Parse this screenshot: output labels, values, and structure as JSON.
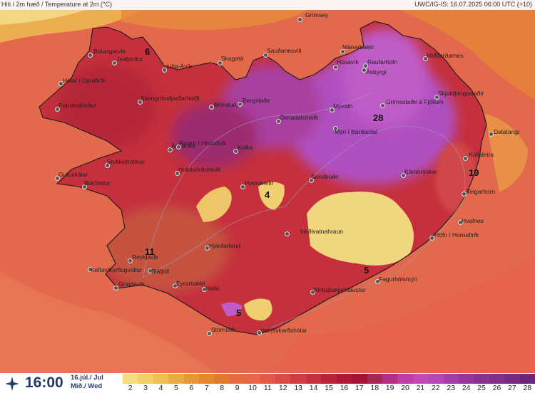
{
  "header": {
    "left": "Hiti í 2m hæð / Temperature at 2m (°C)",
    "right": "UWC/IG-IS: 16.07.2025 06:00 UTC (+10)"
  },
  "footer": {
    "logo_icon": "weather-star-icon",
    "time": "16:00",
    "date_line1": "16.júl./ Jul",
    "date_line2": "Mið./ Wed"
  },
  "scale": {
    "values": [
      "2",
      "3",
      "4",
      "5",
      "6",
      "7",
      "8",
      "9",
      "10",
      "11",
      "12",
      "13",
      "14",
      "15",
      "16",
      "17",
      "18",
      "19",
      "20",
      "21",
      "22",
      "23",
      "24",
      "25",
      "26",
      "27",
      "28"
    ],
    "colors": [
      "#f5dc82",
      "#f2cf6a",
      "#efbe57",
      "#eaaa45",
      "#e6973a",
      "#e48733",
      "#df7b30",
      "#e26e3f",
      "#e4674a",
      "#e15a47",
      "#d94e44",
      "#ce3f40",
      "#c3323c",
      "#b82538",
      "#ac1a36",
      "#a01634",
      "#a42a55",
      "#b12f84",
      "#bd3fa6",
      "#c24cb7",
      "#b648b7",
      "#a53ea9",
      "#96369c",
      "#8b3192",
      "#80308a",
      "#752b80",
      "#6a2677"
    ]
  },
  "places": [
    {
      "name": "Grímsey"
    },
    {
      "name": "Bolungarvík"
    },
    {
      "name": "Ísafjörður"
    },
    {
      "name": "Litla-Ávík"
    },
    {
      "name": "Skagatá"
    },
    {
      "name": "Sauðanesviti"
    },
    {
      "name": "Mánarbakki"
    },
    {
      "name": "Raufarhöfn"
    },
    {
      "name": "Húsavík"
    },
    {
      "name": "Ásbyrgi"
    },
    {
      "name": "Miðfjarðarnes"
    },
    {
      "name": "Hólar í Dýrafirði"
    },
    {
      "name": "Steingrímsfjarðarheiði"
    },
    {
      "name": "Blönduós"
    },
    {
      "name": "Bergstaðir"
    },
    {
      "name": "Grímsstaðir á Fjöllum"
    },
    {
      "name": "Skjaldþingsstaðir"
    },
    {
      "name": "Patreksfjörður"
    },
    {
      "name": "Öxnadalsheiði"
    },
    {
      "name": "Mývatn"
    },
    {
      "name": "Mýri í Bárðardal"
    },
    {
      "name": "Dalatangi"
    },
    {
      "name": "Ásgarður"
    },
    {
      "name": "Reykir í Hrútafirði"
    },
    {
      "name": "Kolka"
    },
    {
      "name": "Kollaleira"
    },
    {
      "name": "Stykkishólmur"
    },
    {
      "name": "Holtavörðuheiði"
    },
    {
      "name": "Sandbúðir"
    },
    {
      "name": "Kárahnjúkar"
    },
    {
      "name": "Gufuskálar"
    },
    {
      "name": "Blárfeldur"
    },
    {
      "name": "Hveravellir"
    },
    {
      "name": "Teigarhorn"
    },
    {
      "name": "Hvalnes"
    },
    {
      "name": "Veiðivatnahraun"
    },
    {
      "name": "Höfn í Hornafirði"
    },
    {
      "name": "Hjarðarland"
    },
    {
      "name": "Reykjavík"
    },
    {
      "name": "Keflavíkurflugvöllur"
    },
    {
      "name": "Bláfjöll"
    },
    {
      "name": "Fagurhólsmýri"
    },
    {
      "name": "Grindavík"
    },
    {
      "name": "Eyrarbakki"
    },
    {
      "name": "Hella"
    },
    {
      "name": "Kirkjubæjarklaustur"
    },
    {
      "name": "Stórhöfði"
    },
    {
      "name": "Vatnsskarðshólar"
    }
  ],
  "contour_labels": [
    "6",
    "28",
    "19",
    "4",
    "11",
    "5",
    "5"
  ]
}
